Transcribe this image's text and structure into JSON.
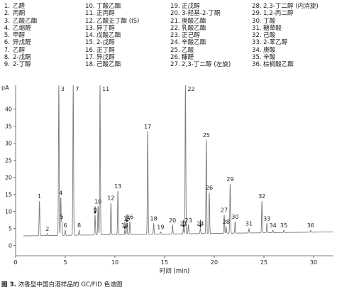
{
  "legend": [
    [
      "1.",
      "乙醛"
    ],
    [
      "2.",
      "丙酮"
    ],
    [
      "3.",
      "乙酸乙酯"
    ],
    [
      "4.",
      "乙缩醛"
    ],
    [
      "5.",
      "甲醇"
    ],
    [
      "6.",
      "异戊醛"
    ],
    [
      "7.",
      "乙醇"
    ],
    [
      "8.",
      "2-戊酮"
    ],
    [
      "9.",
      "2-丁醇"
    ],
    [
      "10.",
      "丁酸乙酯"
    ],
    [
      "11.",
      "正丙醇"
    ],
    [
      "12.",
      "乙酸正丁酯 (IS)"
    ],
    [
      "13.",
      "异丁醇"
    ],
    [
      "14.",
      "戊酸乙酯"
    ],
    [
      "15.",
      "2-戊醇"
    ],
    [
      "16.",
      "正丁醇"
    ],
    [
      "17.",
      "异戊醇"
    ],
    [
      "18.",
      "己酸乙酯"
    ],
    [
      "19.",
      "正戊醇"
    ],
    [
      "20.",
      "3-羟基-2-丁酮"
    ],
    [
      "21.",
      "庚酸乙酯"
    ],
    [
      "22.",
      "乳酸乙酯"
    ],
    [
      "23.",
      "正己醇"
    ],
    [
      "24.",
      "辛酸乙酯"
    ],
    [
      "25.",
      "乙酸"
    ],
    [
      "26.",
      "糠醛"
    ],
    [
      "27.",
      "2,3-丁二醇 (左旋)"
    ],
    [
      "28.",
      "2,3-丁二醇 (内消旋)"
    ],
    [
      "29.",
      "1,2-丙二醇"
    ],
    [
      "30.",
      "丁酸"
    ],
    [
      "31.",
      "糖草酸"
    ],
    [
      "32.",
      "己酸"
    ],
    [
      "33.",
      "2-苯乙醇"
    ],
    [
      "34.",
      "庚酸"
    ],
    [
      "35.",
      "辛酸"
    ],
    [
      "36.",
      "棕榈酸乙酯"
    ]
  ],
  "caption": {
    "fig": "图 3.",
    "text": " 浓香型中国白酒样品的 GC/FID 色谱图"
  },
  "colors": {
    "trace": "#7a7a7a",
    "axis": "#555555",
    "text": "#222222"
  },
  "chart_data": {
    "type": "line",
    "title": "",
    "xlabel": "时间 (min)",
    "ylabel": "pA",
    "xlim": [
      0,
      32
    ],
    "ylim": [
      -3,
      47
    ],
    "xticks": [
      0,
      5,
      10,
      15,
      20,
      25,
      30
    ],
    "yticks": [
      0,
      5,
      10,
      15,
      20,
      25,
      30,
      35,
      40
    ],
    "baseline": [
      [
        0,
        2.8
      ],
      [
        32,
        4.0
      ]
    ],
    "peaks": [
      {
        "label": "1",
        "x": 2.4,
        "y": 13.0
      },
      {
        "label": "2",
        "x": 3.2,
        "y": 3.5
      },
      {
        "label": "3",
        "x": 4.35,
        "y": 47
      },
      {
        "label": "4",
        "x": 4.55,
        "y": 14.0
      },
      {
        "label": "5",
        "x": 4.65,
        "y": 7.0
      },
      {
        "label": "6",
        "x": 5.0,
        "y": 4.5
      },
      {
        "label": "7",
        "x": 5.8,
        "y": 47
      },
      {
        "label": "8",
        "x": 6.4,
        "y": 4.5
      },
      {
        "label": "9",
        "x": 8.0,
        "y": 9.0
      },
      {
        "label": "10",
        "x": 8.3,
        "y": 11.5
      },
      {
        "label": "11",
        "x": 8.5,
        "y": 47
      },
      {
        "label": "12",
        "x": 9.6,
        "y": 12.5
      },
      {
        "label": "13",
        "x": 10.3,
        "y": 16.0
      },
      {
        "label": "14",
        "x": 11.0,
        "y": 4.5
      },
      {
        "label": "15",
        "x": 11.2,
        "y": 6.5
      },
      {
        "label": "16",
        "x": 11.5,
        "y": 7.0
      },
      {
        "label": "17",
        "x": 13.3,
        "y": 33.5
      },
      {
        "label": "18",
        "x": 13.9,
        "y": 6.5
      },
      {
        "label": "19",
        "x": 14.6,
        "y": 4.0
      },
      {
        "label": "20",
        "x": 15.8,
        "y": 6.0
      },
      {
        "label": "21",
        "x": 16.9,
        "y": 5.0
      },
      {
        "label": "22",
        "x": 17.1,
        "y": 47
      },
      {
        "label": "23",
        "x": 17.4,
        "y": 6.0
      },
      {
        "label": "24",
        "x": 18.6,
        "y": 5.0
      },
      {
        "label": "25",
        "x": 19.2,
        "y": 31.0
      },
      {
        "label": "26",
        "x": 19.5,
        "y": 15.5
      },
      {
        "label": "27",
        "x": 21.0,
        "y": 9.0
      },
      {
        "label": "28",
        "x": 21.2,
        "y": 5.5
      },
      {
        "label": "29",
        "x": 21.6,
        "y": 18.0
      },
      {
        "label": "30",
        "x": 22.1,
        "y": 7.0
      },
      {
        "label": "31",
        "x": 23.5,
        "y": 5.0
      },
      {
        "label": "32",
        "x": 24.8,
        "y": 13.0
      },
      {
        "label": "33",
        "x": 25.3,
        "y": 6.5
      },
      {
        "label": "34",
        "x": 25.9,
        "y": 4.5
      },
      {
        "label": "35",
        "x": 27.0,
        "y": 4.5
      },
      {
        "label": "36",
        "x": 29.7,
        "y": 4.5
      }
    ],
    "arrows_at": [
      "9",
      "14",
      "15",
      "21",
      "24"
    ]
  }
}
